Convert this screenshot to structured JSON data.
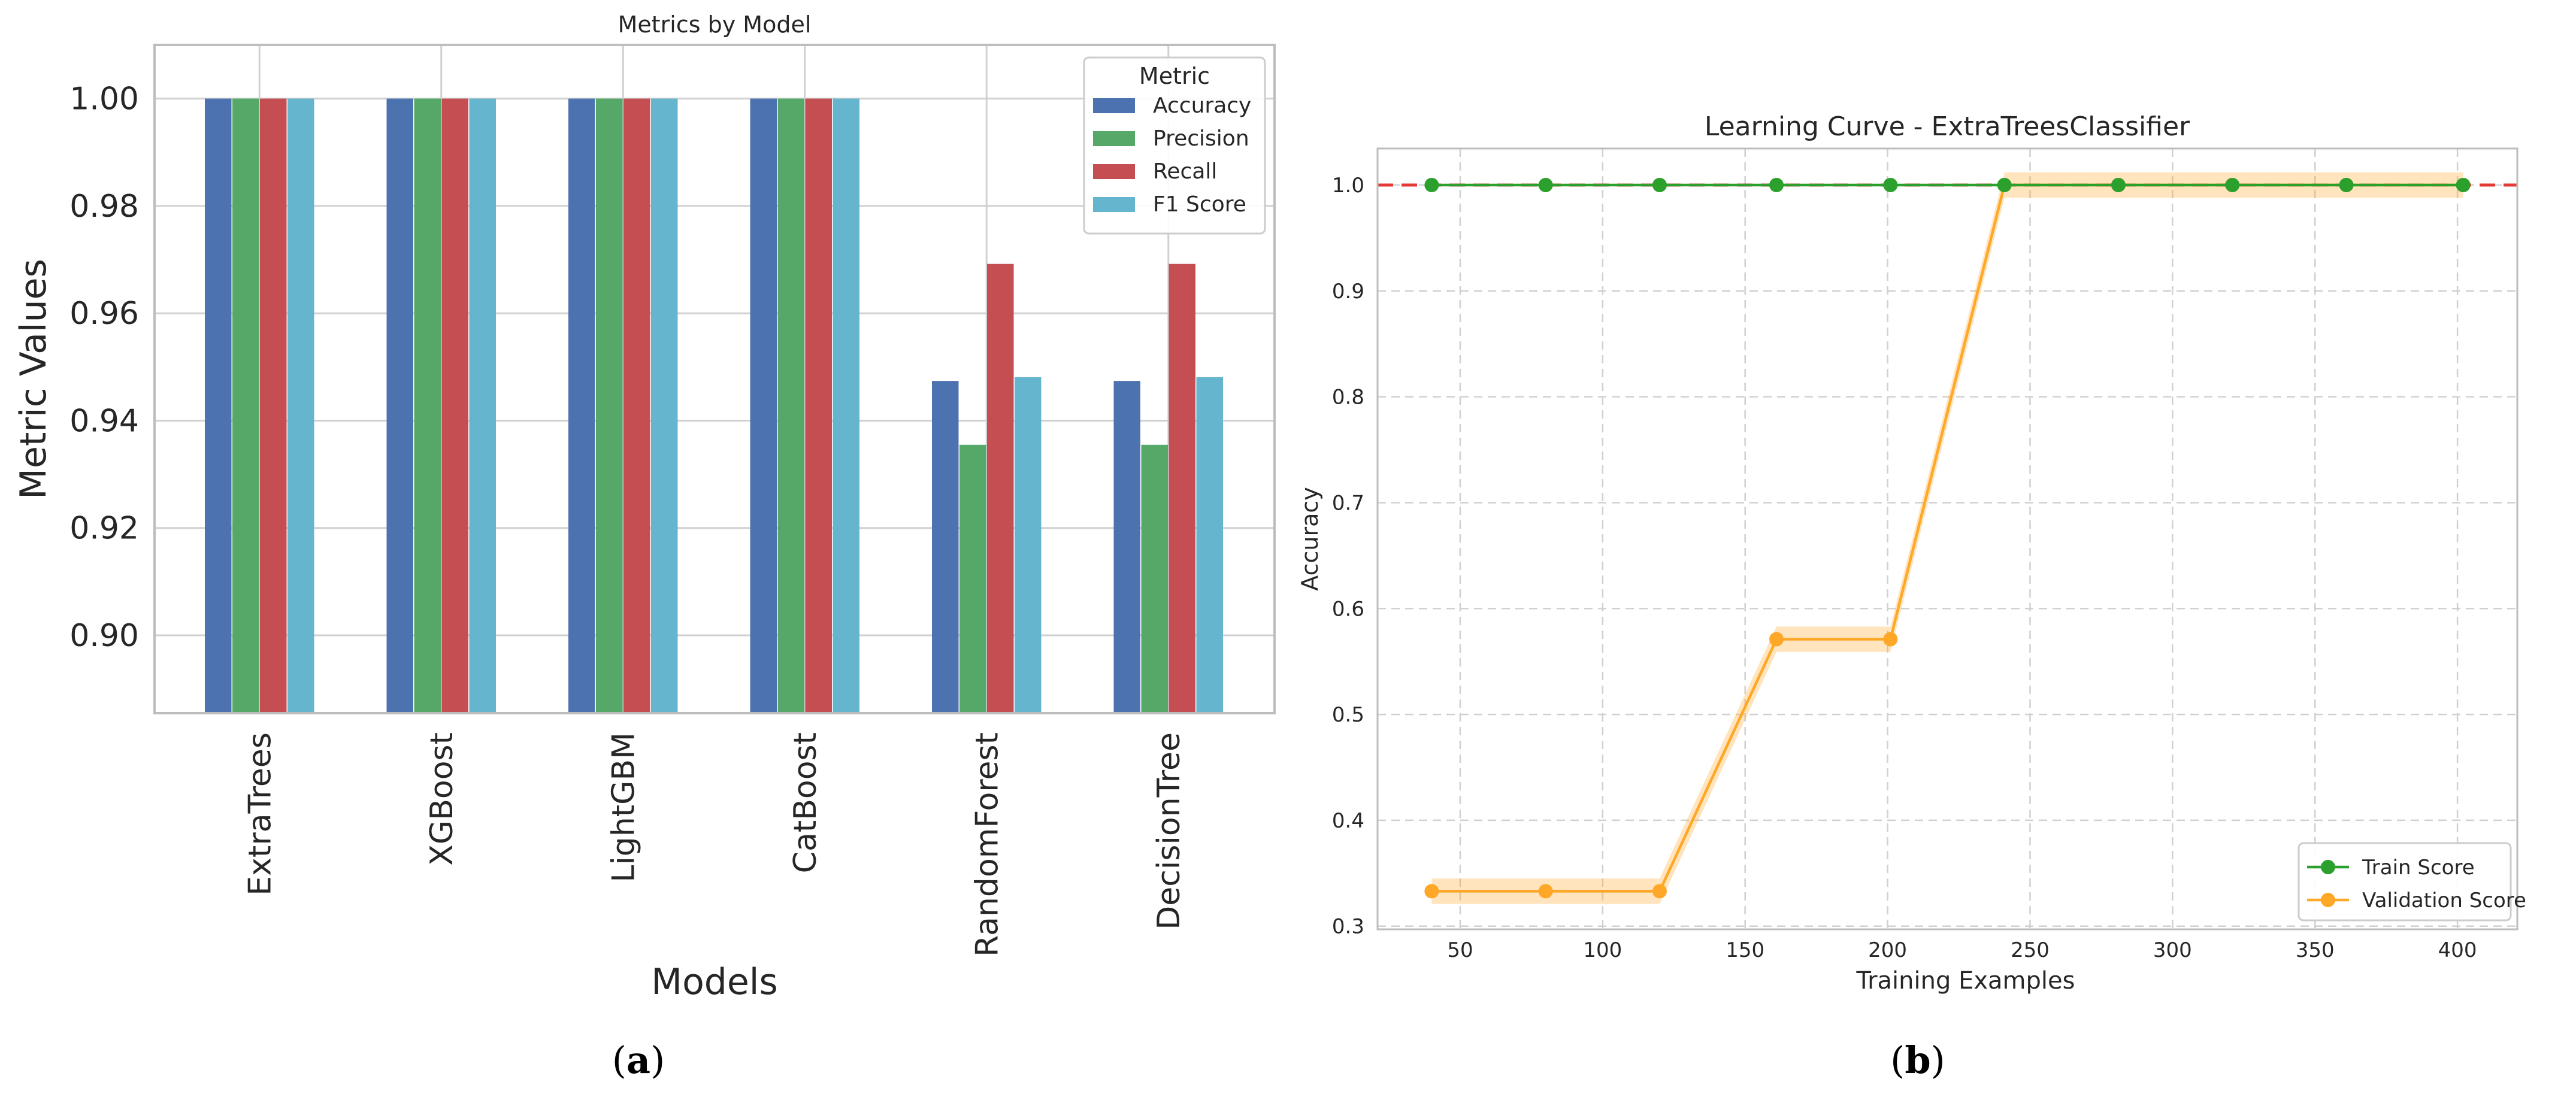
{
  "colors": {
    "accuracy": "#4c72b0",
    "precision": "#55a868",
    "recall": "#c44e52",
    "f1": "#64b5cd",
    "train": "#2ca02c",
    "validation": "#ffa726",
    "reference_line": "#e53935",
    "grid": "#d0d0d0",
    "axis": "#bdbdbd"
  },
  "panels": {
    "a": {
      "caption_open": "(",
      "caption_letter": "a",
      "caption_close": ")"
    },
    "b": {
      "caption_open": "(",
      "caption_letter": "b",
      "caption_close": ")"
    }
  },
  "chart_data": [
    {
      "type": "bar",
      "title": "Metrics by Model",
      "xlabel": "Models",
      "ylabel": "Metric Values",
      "ylim": [
        0.8855,
        1.01
      ],
      "yticks": [
        0.9,
        0.92,
        0.94,
        0.96,
        0.98,
        1.0
      ],
      "ytick_labels": [
        "0.90",
        "0.92",
        "0.94",
        "0.96",
        "0.98",
        "1.00"
      ],
      "grid": true,
      "categories": [
        "ExtraTrees",
        "XGBoost",
        "LightGBM",
        "CatBoost",
        "RandomForest",
        "DecisionTree"
      ],
      "legend": {
        "title": "Metric",
        "placement": "top-right"
      },
      "series": [
        {
          "name": "Accuracy",
          "color": "#4c72b0",
          "values": [
            1.0,
            1.0,
            1.0,
            1.0,
            0.9474,
            0.9474
          ]
        },
        {
          "name": "Precision",
          "color": "#55a868",
          "values": [
            1.0,
            1.0,
            1.0,
            1.0,
            0.9355,
            0.9355
          ]
        },
        {
          "name": "Recall",
          "color": "#c44e52",
          "values": [
            1.0,
            1.0,
            1.0,
            1.0,
            0.9692,
            0.9692
          ]
        },
        {
          "name": "F1 Score",
          "color": "#64b5cd",
          "values": [
            1.0,
            1.0,
            1.0,
            1.0,
            0.9481,
            0.9481
          ]
        }
      ]
    },
    {
      "type": "line",
      "title": "Learning Curve - ExtraTreesClassifier",
      "xlabel": "Training Examples",
      "ylabel": "Accuracy",
      "xlim": [
        21,
        421
      ],
      "ylim": [
        0.297,
        1.0345
      ],
      "xticks": [
        50,
        100,
        150,
        200,
        250,
        300,
        350,
        400
      ],
      "xtick_labels": [
        "50",
        "100",
        "150",
        "200",
        "250",
        "300",
        "350",
        "400"
      ],
      "yticks": [
        0.3,
        0.4,
        0.5,
        0.6,
        0.7,
        0.8,
        0.9,
        1.0
      ],
      "ytick_labels": [
        "0.3",
        "0.4",
        "0.5",
        "0.6",
        "0.7",
        "0.8",
        "0.9",
        "1.0"
      ],
      "grid": true,
      "reference_line": {
        "y": 1.0,
        "style": "dashed",
        "color": "#e53935"
      },
      "legend": {
        "placement": "bottom-right"
      },
      "x": [
        40,
        80,
        120,
        161,
        201,
        241,
        281,
        321,
        361,
        402
      ],
      "series": [
        {
          "name": "Train Score",
          "color": "#2ca02c",
          "values": [
            1.0,
            1.0,
            1.0,
            1.0,
            1.0,
            1.0,
            1.0,
            1.0,
            1.0,
            1.0
          ],
          "band": 0.0
        },
        {
          "name": "Validation Score",
          "color": "#ffa726",
          "values": [
            0.333,
            0.333,
            0.333,
            0.571,
            0.571,
            1.0,
            1.0,
            1.0,
            1.0,
            1.0
          ],
          "band": 0.012
        }
      ]
    }
  ]
}
